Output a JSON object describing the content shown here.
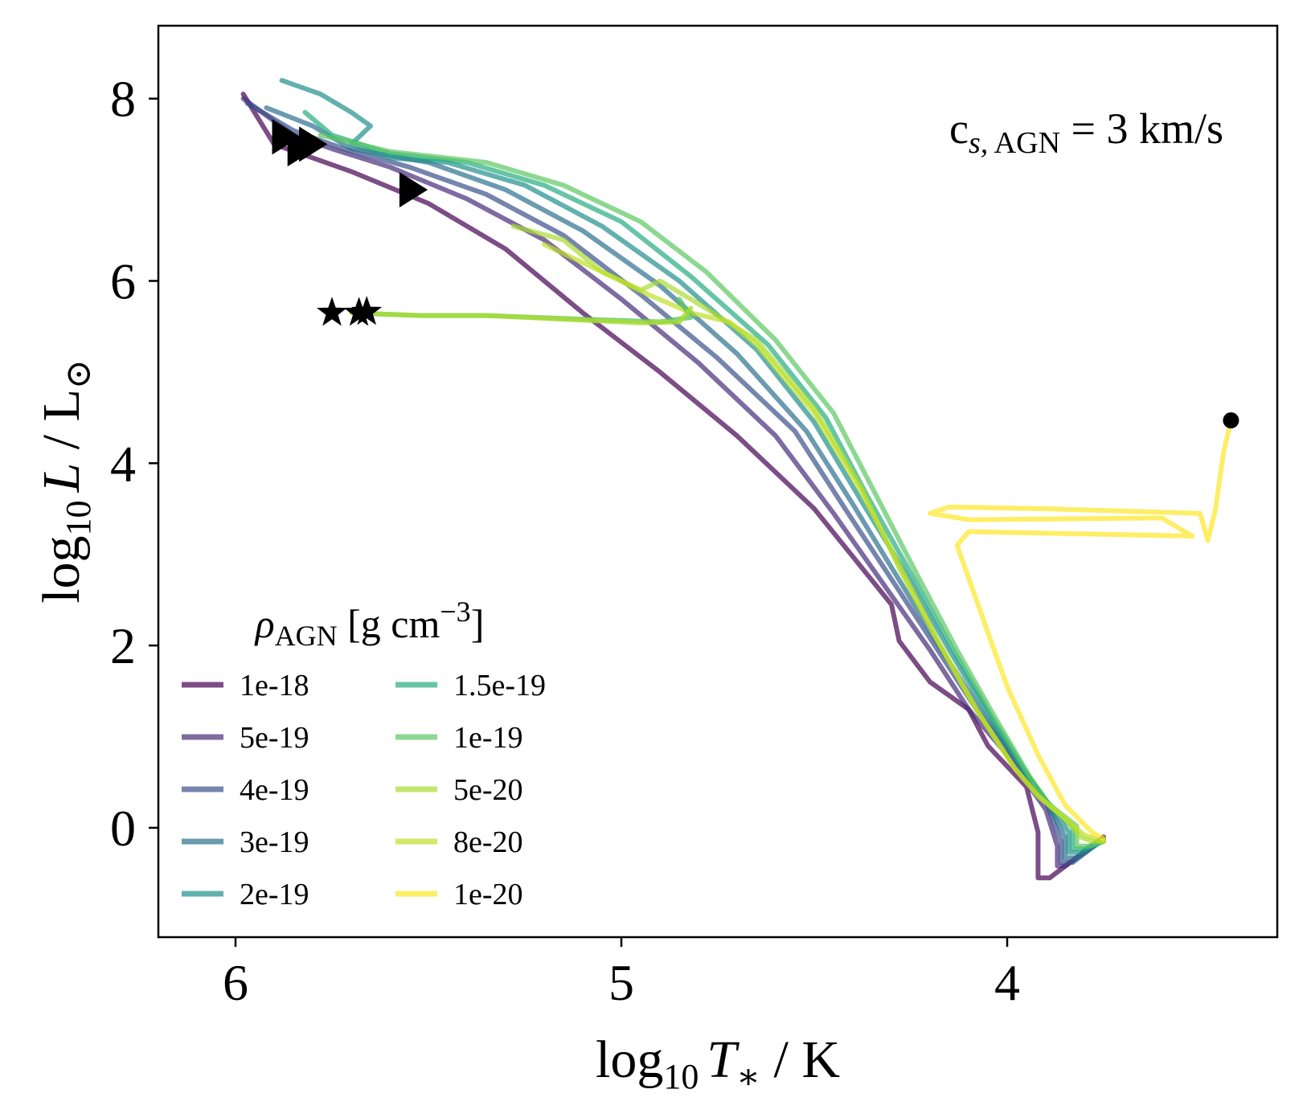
{
  "chart_data": {
    "type": "line",
    "x_label": {
      "prefix": "log",
      "sub": "10",
      "var": "T",
      "varsub": "∗",
      "unit": " / K"
    },
    "y_label": {
      "prefix": "log",
      "sub": "10",
      "var": "L",
      "unit": " / L",
      "unit_symbol": "⊙"
    },
    "x_ticks": [
      "6",
      "5",
      "4"
    ],
    "x_tick_values": [
      6,
      5,
      4
    ],
    "y_ticks": [
      "0",
      "2",
      "4",
      "6",
      "8"
    ],
    "y_tick_values": [
      0,
      2,
      4,
      6,
      8
    ],
    "xlim": [
      6.2,
      3.3
    ],
    "ylim": [
      -1.2,
      8.8
    ],
    "x_inverted": true,
    "grid": false,
    "annotation": {
      "base": "c",
      "sub1": "s,",
      "sub2": " AGN",
      "rest": " = 3 km/s"
    },
    "legend": {
      "title_sym": "ρ",
      "title_sub": "AGN",
      "title_unit": " [g cm",
      "title_sup": "−3",
      "title_end": "]",
      "placement": "lower-left",
      "columns": 2
    },
    "series": [
      {
        "name": "1e-18",
        "color": "#440154",
        "points": [
          [
            5.98,
            8.05
          ],
          [
            5.9,
            7.5
          ],
          [
            5.8,
            7.35
          ],
          [
            5.7,
            7.2
          ],
          [
            5.5,
            6.85
          ],
          [
            5.3,
            6.35
          ],
          [
            5.1,
            5.65
          ],
          [
            4.9,
            5.0
          ],
          [
            4.7,
            4.3
          ],
          [
            4.5,
            3.5
          ],
          [
            4.3,
            2.45
          ],
          [
            4.28,
            2.05
          ],
          [
            4.2,
            1.6
          ],
          [
            4.1,
            1.3
          ],
          [
            4.05,
            0.9
          ],
          [
            3.95,
            0.45
          ],
          [
            3.92,
            -0.05
          ],
          [
            3.92,
            -0.55
          ],
          [
            3.89,
            -0.55
          ],
          [
            3.75,
            -0.1
          ]
        ]
      },
      {
        "name": "5e-19",
        "color": "#472c7a",
        "points": [
          [
            5.98,
            8.0
          ],
          [
            5.85,
            7.6
          ],
          [
            5.75,
            7.45
          ],
          [
            5.6,
            7.25
          ],
          [
            5.4,
            6.9
          ],
          [
            5.2,
            6.45
          ],
          [
            5.0,
            5.8
          ],
          [
            4.8,
            5.1
          ],
          [
            4.6,
            4.3
          ],
          [
            4.45,
            3.45
          ],
          [
            4.3,
            2.55
          ],
          [
            4.2,
            1.95
          ],
          [
            4.1,
            1.3
          ],
          [
            4.0,
            0.8
          ],
          [
            3.9,
            0.2
          ],
          [
            3.87,
            -0.2
          ],
          [
            3.87,
            -0.42
          ],
          [
            3.85,
            -0.42
          ],
          [
            3.75,
            -0.12
          ]
        ]
      },
      {
        "name": "4e-19",
        "color": "#3b518b",
        "points": [
          [
            5.97,
            7.95
          ],
          [
            5.85,
            7.65
          ],
          [
            5.72,
            7.45
          ],
          [
            5.55,
            7.25
          ],
          [
            5.35,
            6.95
          ],
          [
            5.15,
            6.5
          ],
          [
            4.95,
            5.85
          ],
          [
            4.75,
            5.15
          ],
          [
            4.55,
            4.35
          ],
          [
            4.42,
            3.5
          ],
          [
            4.28,
            2.6
          ],
          [
            4.18,
            1.95
          ],
          [
            4.08,
            1.3
          ],
          [
            3.98,
            0.75
          ],
          [
            3.9,
            0.3
          ],
          [
            3.86,
            -0.15
          ],
          [
            3.86,
            -0.38
          ],
          [
            3.83,
            -0.38
          ],
          [
            3.75,
            -0.12
          ]
        ]
      },
      {
        "name": "3e-19",
        "color": "#2c718e",
        "points": [
          [
            5.92,
            7.9
          ],
          [
            5.8,
            7.7
          ],
          [
            5.7,
            7.45
          ],
          [
            5.5,
            7.3
          ],
          [
            5.3,
            7.0
          ],
          [
            5.1,
            6.55
          ],
          [
            4.9,
            5.95
          ],
          [
            4.7,
            5.2
          ],
          [
            4.52,
            4.35
          ],
          [
            4.4,
            3.55
          ],
          [
            4.27,
            2.65
          ],
          [
            4.17,
            1.95
          ],
          [
            4.07,
            1.3
          ],
          [
            3.97,
            0.7
          ],
          [
            3.9,
            0.3
          ],
          [
            3.85,
            -0.1
          ],
          [
            3.85,
            -0.33
          ],
          [
            3.82,
            -0.33
          ],
          [
            3.75,
            -0.13
          ]
        ]
      },
      {
        "name": "2e-19",
        "color": "#21908d",
        "points": [
          [
            5.88,
            8.2
          ],
          [
            5.78,
            8.05
          ],
          [
            5.7,
            7.85
          ],
          [
            5.65,
            7.7
          ],
          [
            5.7,
            7.5
          ],
          [
            5.6,
            7.35
          ],
          [
            5.45,
            7.3
          ],
          [
            5.25,
            7.05
          ],
          [
            5.05,
            6.6
          ],
          [
            4.85,
            6.0
          ],
          [
            4.65,
            5.25
          ],
          [
            4.5,
            4.45
          ],
          [
            4.38,
            3.6
          ],
          [
            4.25,
            2.7
          ],
          [
            4.15,
            1.95
          ],
          [
            4.05,
            1.25
          ],
          [
            3.96,
            0.65
          ],
          [
            3.9,
            0.3
          ],
          [
            3.84,
            -0.05
          ],
          [
            3.84,
            -0.27
          ],
          [
            3.81,
            -0.27
          ],
          [
            3.75,
            -0.14
          ]
        ]
      },
      {
        "name": "1.5e-19",
        "color": "#27ad81",
        "points": [
          [
            5.82,
            7.85
          ],
          [
            5.75,
            7.6
          ],
          [
            5.6,
            7.4
          ],
          [
            5.4,
            7.3
          ],
          [
            5.2,
            7.05
          ],
          [
            5.0,
            6.65
          ],
          [
            4.82,
            6.05
          ],
          [
            4.62,
            5.3
          ],
          [
            4.47,
            4.5
          ],
          [
            4.36,
            3.62
          ],
          [
            4.24,
            2.72
          ],
          [
            4.14,
            1.95
          ],
          [
            4.04,
            1.22
          ],
          [
            3.95,
            0.6
          ],
          [
            3.9,
            0.3
          ],
          [
            3.83,
            0.0
          ],
          [
            3.83,
            -0.23
          ],
          [
            3.8,
            -0.23
          ],
          [
            3.75,
            -0.15
          ]
        ]
      },
      {
        "name": "1e-19",
        "color": "#5cc863",
        "points": [
          [
            5.78,
            7.6
          ],
          [
            5.6,
            7.42
          ],
          [
            5.35,
            7.3
          ],
          [
            5.15,
            7.05
          ],
          [
            4.95,
            6.65
          ],
          [
            4.78,
            6.1
          ],
          [
            4.6,
            5.35
          ],
          [
            4.45,
            4.55
          ],
          [
            4.34,
            3.65
          ],
          [
            4.23,
            2.75
          ],
          [
            4.13,
            1.95
          ],
          [
            4.03,
            1.2
          ],
          [
            3.94,
            0.55
          ],
          [
            3.89,
            0.25
          ],
          [
            3.82,
            0.02
          ],
          [
            3.82,
            -0.2
          ],
          [
            3.79,
            -0.2
          ],
          [
            3.75,
            -0.15
          ]
        ]
      },
      {
        "name": "5e-20",
        "color": "#aadc32",
        "points": [
          [
            5.28,
            6.6
          ],
          [
            5.15,
            6.45
          ],
          [
            5.05,
            6.1
          ],
          [
            4.95,
            5.9
          ],
          [
            4.9,
            6.0
          ],
          [
            4.8,
            5.75
          ],
          [
            4.65,
            5.35
          ],
          [
            4.5,
            4.6
          ],
          [
            4.38,
            3.75
          ],
          [
            4.28,
            2.85
          ],
          [
            4.18,
            2.05
          ],
          [
            4.08,
            1.3
          ],
          [
            3.98,
            0.65
          ],
          [
            3.92,
            0.35
          ],
          [
            3.85,
            0.1
          ],
          [
            3.81,
            -0.1
          ],
          [
            3.78,
            -0.15
          ],
          [
            3.75,
            -0.15
          ]
        ]
      },
      {
        "name": "8e-20",
        "color": "#bddf26",
        "points": [
          [
            5.2,
            6.4
          ],
          [
            5.05,
            6.1
          ],
          [
            4.93,
            5.85
          ],
          [
            4.82,
            5.65
          ],
          [
            4.72,
            5.55
          ],
          [
            4.65,
            5.3
          ],
          [
            4.5,
            4.55
          ],
          [
            4.38,
            3.7
          ],
          [
            4.27,
            2.8
          ],
          [
            4.18,
            2.05
          ],
          [
            4.08,
            1.3
          ],
          [
            3.98,
            0.65
          ],
          [
            3.92,
            0.35
          ],
          [
            3.85,
            0.1
          ],
          [
            3.8,
            -0.08
          ],
          [
            3.75,
            -0.15
          ]
        ]
      },
      {
        "name": "1e-20",
        "color": "#fde725",
        "points": [
          [
            3.42,
            4.47
          ],
          [
            3.44,
            4.1
          ],
          [
            3.46,
            3.5
          ],
          [
            3.48,
            3.15
          ],
          [
            3.5,
            3.45
          ],
          [
            3.9,
            3.5
          ],
          [
            4.15,
            3.52
          ],
          [
            4.2,
            3.45
          ],
          [
            4.1,
            3.38
          ],
          [
            3.6,
            3.4
          ],
          [
            3.52,
            3.2
          ],
          [
            4.1,
            3.25
          ],
          [
            4.13,
            3.1
          ],
          [
            4.08,
            2.5
          ],
          [
            4.0,
            1.55
          ],
          [
            3.92,
            0.8
          ],
          [
            3.85,
            0.25
          ],
          [
            3.78,
            -0.05
          ],
          [
            3.75,
            -0.12
          ]
        ]
      }
    ],
    "branch_tracks": [
      {
        "color": "#5cc863",
        "points": [
          [
            4.85,
            5.8
          ],
          [
            4.82,
            5.6
          ],
          [
            4.9,
            5.55
          ],
          [
            5.1,
            5.58
          ],
          [
            5.35,
            5.62
          ],
          [
            5.52,
            5.62
          ],
          [
            5.65,
            5.64
          ]
        ]
      },
      {
        "color": "#aadc32",
        "points": [
          [
            4.82,
            5.7
          ],
          [
            4.85,
            5.55
          ],
          [
            4.95,
            5.54
          ],
          [
            5.15,
            5.58
          ],
          [
            5.35,
            5.62
          ],
          [
            5.52,
            5.62
          ],
          [
            5.7,
            5.65
          ]
        ]
      }
    ],
    "markers": {
      "triangles": [
        [
          5.88,
          7.58
        ],
        [
          5.84,
          7.45
        ],
        [
          5.81,
          7.5
        ],
        [
          5.55,
          7.0
        ]
      ],
      "stars": [
        [
          5.75,
          5.65
        ],
        [
          5.68,
          5.65
        ],
        [
          5.66,
          5.66
        ]
      ],
      "dots": [
        [
          3.42,
          4.47
        ]
      ]
    }
  }
}
